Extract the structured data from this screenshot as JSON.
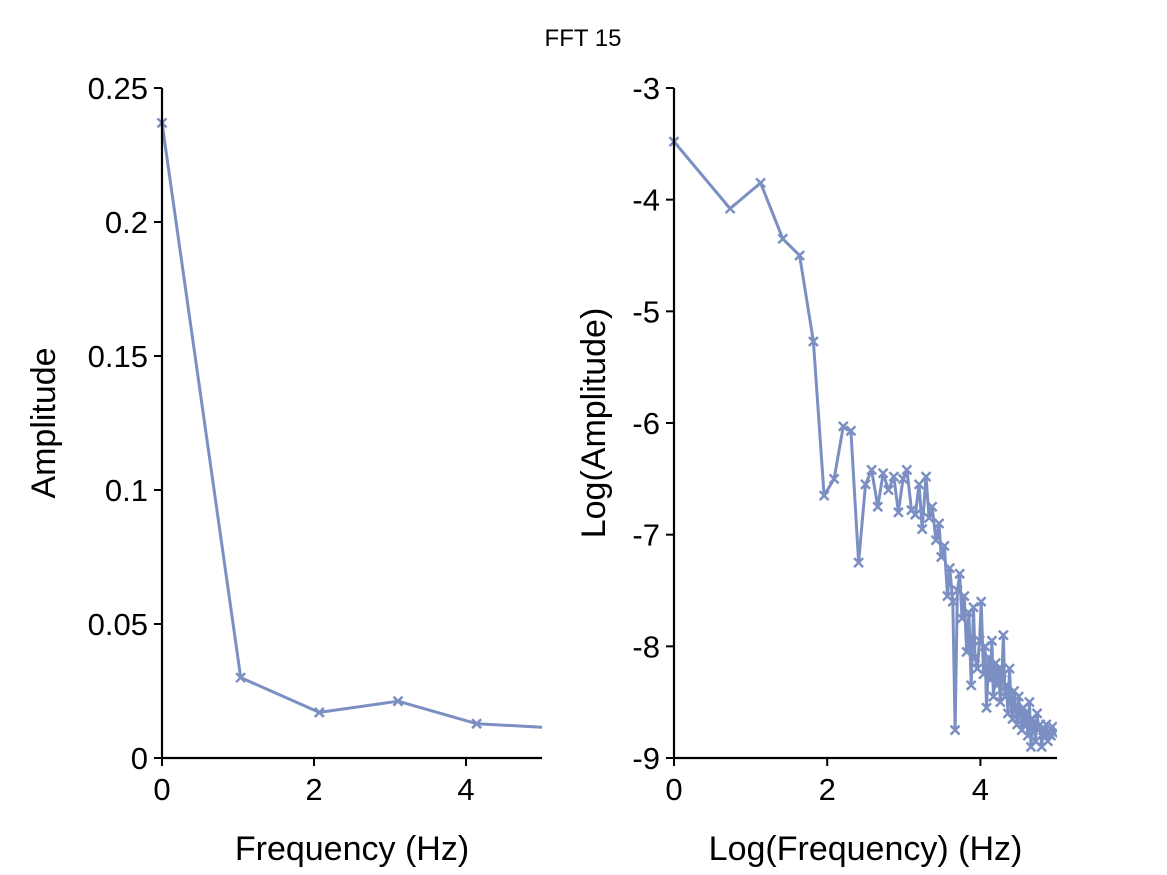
{
  "figure": {
    "title": "FFT 15"
  },
  "chart_data": [
    {
      "type": "line",
      "title": "",
      "xlabel": "Frequency (Hz)",
      "ylabel": "Amplitude",
      "xlim": [
        0,
        5
      ],
      "ylim": [
        0,
        0.25
      ],
      "xticks": [
        0,
        2,
        4
      ],
      "xtick_labels": [
        "0",
        "2",
        "4"
      ],
      "yticks": [
        0,
        0.05,
        0.1,
        0.15,
        0.2,
        0.25
      ],
      "ytick_labels": [
        "0",
        "0.05",
        "0.1",
        "0.15",
        "0.2",
        "0.25"
      ],
      "grid": false,
      "color": "#7b8fc2",
      "marker": "x",
      "series": [
        {
          "x": [
            0,
            1.035,
            2.07,
            3.105,
            4.14,
            5.175
          ],
          "y": [
            0.237,
            0.03,
            0.017,
            0.0212,
            0.0128,
            0.0112
          ]
        }
      ]
    },
    {
      "type": "line",
      "title": "",
      "xlabel": "Log(Frequency) (Hz)",
      "ylabel": "Log(Amplitude)",
      "xlim": [
        0,
        5
      ],
      "ylim": [
        -9,
        -3
      ],
      "xticks": [
        0,
        2,
        4
      ],
      "xtick_labels": [
        "0",
        "2",
        "4"
      ],
      "yticks": [
        -9,
        -8,
        -7,
        -6,
        -5,
        -4,
        -3
      ],
      "ytick_labels": [
        "-9",
        "-8",
        "-7",
        "-6",
        "-5",
        "-4",
        "-3"
      ],
      "grid": false,
      "color": "#7b8fc2",
      "marker": "x",
      "series": [
        {
          "x": [
            0,
            0.733,
            1.13,
            1.42,
            1.64,
            1.82,
            1.96,
            2.09,
            2.21,
            2.31,
            2.41,
            2.5,
            2.58,
            2.66,
            2.73,
            2.8,
            2.87,
            2.93,
            2.99,
            3.04,
            3.1,
            3.15,
            3.2,
            3.24,
            3.29,
            3.33,
            3.37,
            3.42,
            3.46,
            3.49,
            3.53,
            3.57,
            3.6,
            3.64,
            3.67,
            3.7,
            3.73,
            3.76,
            3.79,
            3.82,
            3.85,
            3.88,
            3.91,
            3.93,
            3.96,
            3.99,
            4.01,
            4.04,
            4.06,
            4.08,
            4.11,
            4.13,
            4.15,
            4.17,
            4.2,
            4.22,
            4.24,
            4.26,
            4.28,
            4.3,
            4.32,
            4.34,
            4.36,
            4.38,
            4.4,
            4.42,
            4.44,
            4.46,
            4.48,
            4.5,
            4.52,
            4.54,
            4.56,
            4.58,
            4.6,
            4.62,
            4.64,
            4.66,
            4.68,
            4.7,
            4.72,
            4.74,
            4.76,
            4.78,
            4.8,
            4.82,
            4.84,
            4.86,
            4.88,
            4.9,
            4.92,
            4.94,
            4.96
          ],
          "y": [
            -3.48,
            -4.08,
            -3.85,
            -4.35,
            -4.5,
            -5.27,
            -6.65,
            -6.5,
            -6.03,
            -6.07,
            -7.25,
            -6.55,
            -6.42,
            -6.75,
            -6.45,
            -6.6,
            -6.48,
            -6.8,
            -6.5,
            -6.42,
            -6.78,
            -6.82,
            -6.55,
            -6.95,
            -6.48,
            -6.85,
            -6.75,
            -7.05,
            -6.9,
            -7.2,
            -7.1,
            -7.55,
            -7.3,
            -7.6,
            -8.75,
            -7.5,
            -7.35,
            -7.75,
            -7.55,
            -8.05,
            -7.7,
            -8.35,
            -7.65,
            -8.1,
            -8.2,
            -7.95,
            -7.6,
            -8.25,
            -8.0,
            -8.55,
            -8.1,
            -8.3,
            -7.95,
            -8.45,
            -8.15,
            -8.35,
            -8.2,
            -8.5,
            -8.3,
            -7.9,
            -8.45,
            -8.35,
            -8.6,
            -8.2,
            -8.5,
            -8.65,
            -8.4,
            -8.55,
            -8.7,
            -8.45,
            -8.6,
            -8.75,
            -8.55,
            -8.7,
            -8.6,
            -8.8,
            -8.5,
            -8.9,
            -8.65,
            -8.7,
            -8.85,
            -8.6,
            -8.75,
            -8.7,
            -8.9,
            -8.75,
            -8.8,
            -8.7,
            -8.85,
            -8.78,
            -8.8,
            -8.72,
            -8.78
          ]
        }
      ]
    }
  ]
}
